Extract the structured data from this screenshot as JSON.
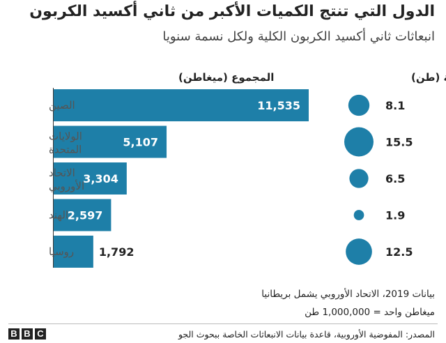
{
  "title": "الدول التي تنتج الكميات الأكبر من ثاني أكسيد الكربون",
  "subtitle": "انبعاثات ثاني أكسيد الكربون الكلية ولكل نسمة سنويا",
  "notes": {
    "line1": "بيانات 2019، الاتحاد الأوروبي يشمل بريطانيا",
    "line2": "ميغاطن واحد = 1,000,000 طن"
  },
  "source": "المصدر: المفوضية الأوروبية، قاعدة بيانات الانبعاثات الخاصة ببحوث الجو",
  "logo": [
    "B",
    "B",
    "C"
  ],
  "colors": {
    "accent": "#1e7fa8",
    "label_gray": "#555555",
    "divider": "#bbbbbb"
  },
  "chart_data": [
    {
      "type": "bar",
      "orientation": "horizontal",
      "header": "المجموع (ميغاطن)",
      "categories": [
        "الصين",
        "الولايات المتحدة",
        "الاتحاد الأوروبي",
        "الهند",
        "روسيا"
      ],
      "values": [
        11535,
        5107,
        3304,
        2597,
        1792
      ],
      "value_labels": [
        "11,535",
        "5,107",
        "3,304",
        "2,597",
        "1,792"
      ]
    },
    {
      "type": "scatter",
      "encoding": "bubble-size",
      "header": "لكل نسمة (طن)",
      "categories": [
        "الصين",
        "الولايات المتحدة",
        "الاتحاد الأوروبي",
        "الهند",
        "روسيا"
      ],
      "values": [
        8.1,
        15.5,
        6.5,
        1.9,
        12.5
      ],
      "value_labels": [
        "8.1",
        "15.5",
        "6.5",
        "1.9",
        "12.5"
      ]
    }
  ]
}
